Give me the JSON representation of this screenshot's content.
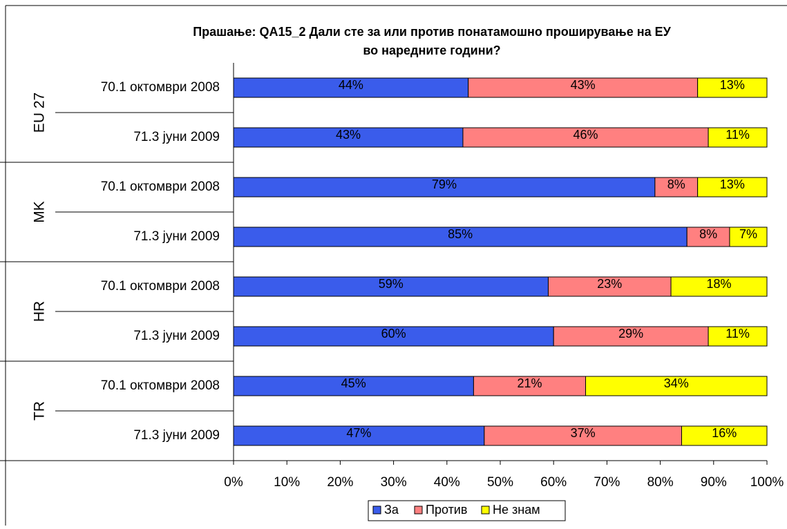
{
  "chart_data": {
    "type": "stacked-bar-horizontal",
    "title": [
      "Прашање: QA15_2  Дали сте за или против понатамошно проширување на ЕУ",
      "во наредните години?"
    ],
    "groups": [
      "EU 27",
      "MK",
      "HR",
      "TR"
    ],
    "categories": [
      "70.1 октомври 2008",
      "71.3 јуни 2009",
      "70.1 октомври 2008",
      "71.3 јуни 2009",
      "70.1 октомври 2008",
      "71.3 јуни 2009",
      "70.1 октомври 2008",
      "71.3 јуни 2009"
    ],
    "series": [
      {
        "name": "За",
        "color": "#3A5CEB",
        "values": [
          44,
          43,
          79,
          85,
          59,
          60,
          45,
          47
        ],
        "value_labels": [
          "44%",
          "43%",
          "79%",
          "85%",
          "59%",
          "60%",
          "45%",
          "47%"
        ]
      },
      {
        "name": "Против",
        "color": "#FF8080",
        "values": [
          43,
          46,
          8,
          8,
          23,
          29,
          21,
          37
        ],
        "value_labels": [
          "43%",
          "46%",
          "8%",
          "8%",
          "23%",
          "29%",
          "21%",
          "37%"
        ]
      },
      {
        "name": "Не знам",
        "color": "#FFFF00",
        "values": [
          13,
          11,
          13,
          7,
          18,
          11,
          34,
          16
        ],
        "value_labels": [
          "13%",
          "11%",
          "13%",
          "7%",
          "18%",
          "11%",
          "34%",
          "16%"
        ]
      }
    ],
    "xlim": [
      0,
      100
    ],
    "xticks": [
      {
        "value": 0,
        "label": "0%"
      },
      {
        "value": 10,
        "label": "10%"
      },
      {
        "value": 20,
        "label": "20%"
      },
      {
        "value": 30,
        "label": "30%"
      },
      {
        "value": 40,
        "label": "40%"
      },
      {
        "value": 50,
        "label": "50%"
      },
      {
        "value": 60,
        "label": "60%"
      },
      {
        "value": 70,
        "label": "70%"
      },
      {
        "value": 80,
        "label": "80%"
      },
      {
        "value": 90,
        "label": "90%"
      },
      {
        "value": 100,
        "label": "100%"
      }
    ],
    "legend": "bottom"
  }
}
